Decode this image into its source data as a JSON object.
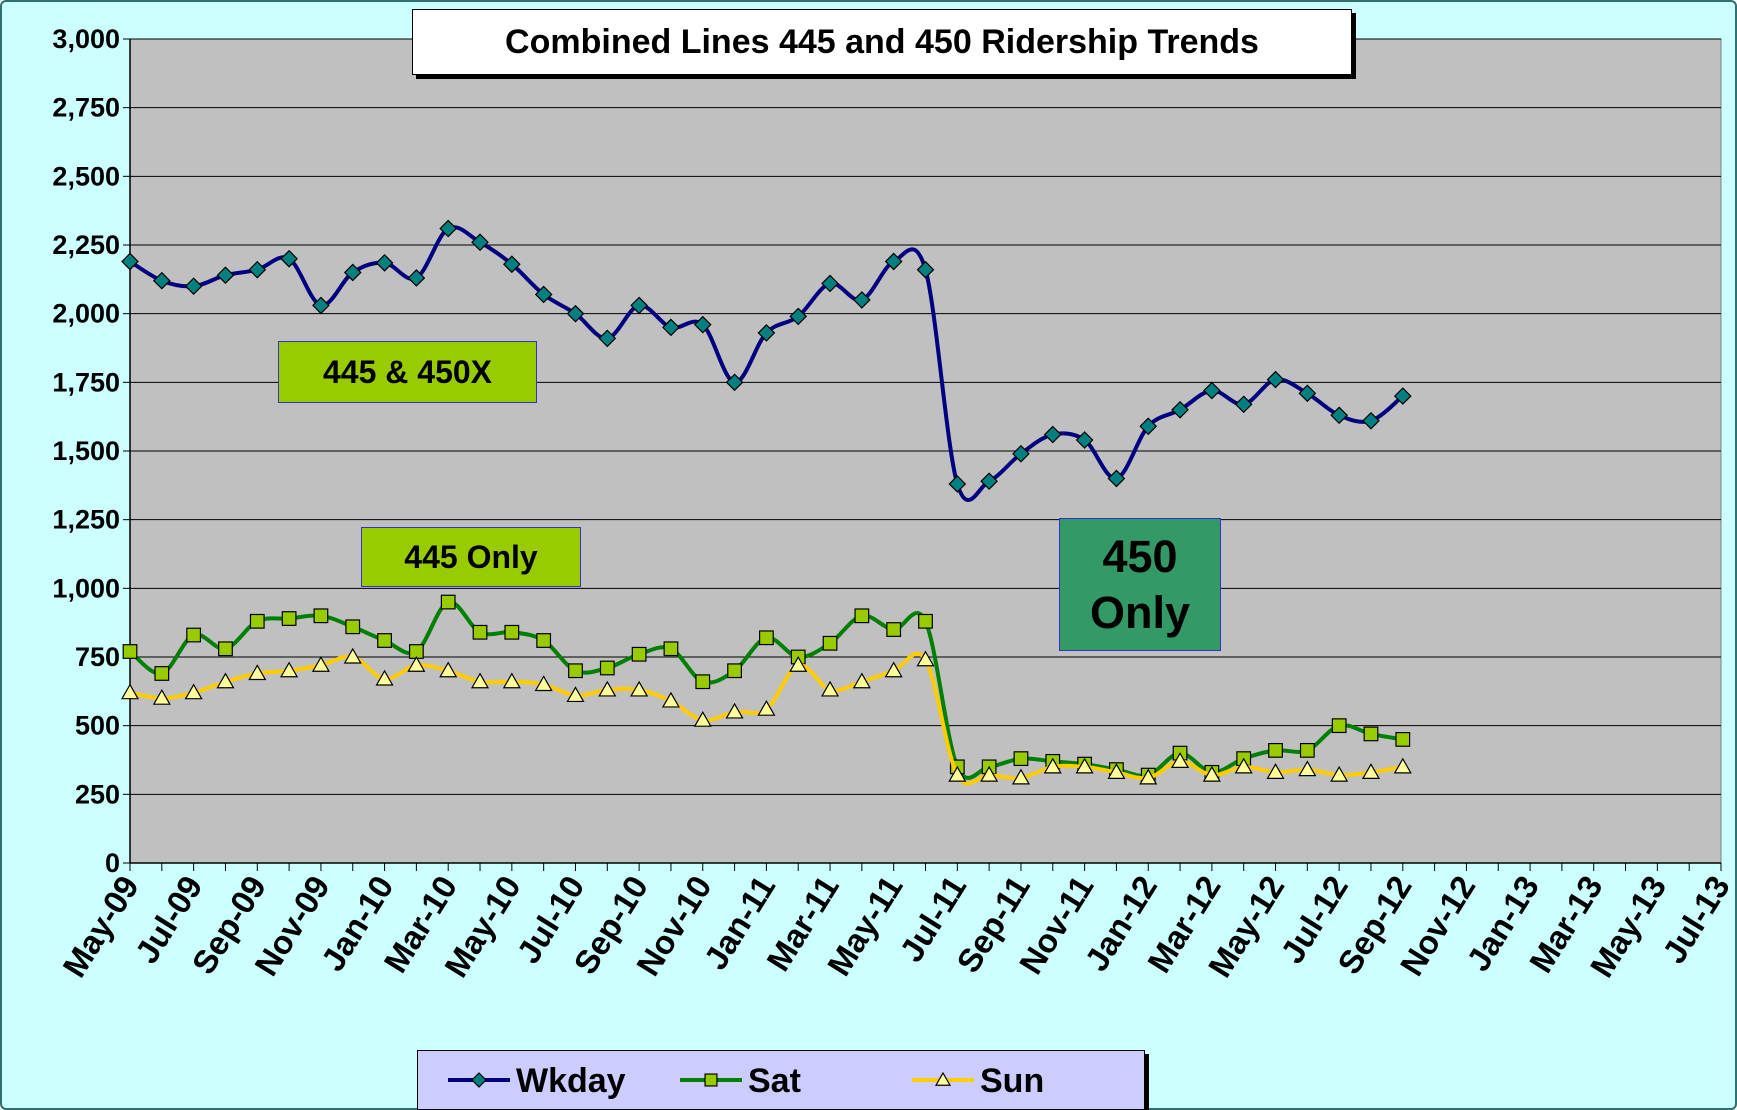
{
  "chart_data": {
    "type": "line",
    "title": "Combined Lines 445 and 450 Ridership Trends",
    "categories": [
      "May-09",
      null,
      "Jul-09",
      null,
      "Sep-09",
      null,
      "Nov-09",
      null,
      "Jan-10",
      null,
      "Mar-10",
      null,
      "May-10",
      null,
      "Jul-10",
      null,
      "Sep-10",
      null,
      "Nov-10",
      null,
      "Jan-11",
      null,
      "Mar-11",
      null,
      "May-11",
      null,
      "Jul-11",
      null,
      "Sep-11",
      null,
      "Nov-11",
      null,
      "Jan-12",
      null,
      "Mar-12",
      null,
      "May-12",
      null,
      "Jul-12",
      null,
      "Sep-12",
      null,
      "Nov-12",
      null,
      "Jan-13",
      null,
      "Mar-13",
      null,
      "May-13",
      null,
      "Jul-13"
    ],
    "series": [
      {
        "name": "Wkday",
        "color": "#000080",
        "marker": "diamond",
        "marker_color": "#008080",
        "values": [
          2190,
          2120,
          2100,
          2140,
          2160,
          2200,
          2030,
          2150,
          2185,
          2130,
          2310,
          2260,
          2180,
          2070,
          2000,
          1910,
          2030,
          1950,
          1960,
          1750,
          1930,
          1990,
          2110,
          2050,
          2190,
          2160,
          1380,
          1390,
          1490,
          1560,
          1540,
          1400,
          1590,
          1650,
          1720,
          1670,
          1760,
          1710,
          1630,
          1610,
          1700,
          null,
          null,
          null,
          null,
          null,
          null,
          null,
          null,
          null,
          null
        ]
      },
      {
        "name": "Sat",
        "color": "#008000",
        "marker": "square",
        "marker_color": "#99cc00",
        "values": [
          770,
          690,
          830,
          780,
          880,
          890,
          900,
          860,
          810,
          770,
          950,
          840,
          840,
          810,
          700,
          710,
          760,
          780,
          660,
          700,
          820,
          750,
          800,
          900,
          850,
          880,
          350,
          350,
          380,
          370,
          360,
          340,
          320,
          400,
          330,
          380,
          410,
          410,
          500,
          470,
          450,
          null,
          null,
          null,
          null,
          null,
          null,
          null,
          null,
          null,
          null
        ]
      },
      {
        "name": "Sun",
        "color": "#ffcc00",
        "marker": "triangle",
        "marker_color": "#ffff99",
        "values": [
          620,
          600,
          620,
          660,
          690,
          700,
          720,
          750,
          670,
          720,
          700,
          660,
          660,
          650,
          610,
          630,
          630,
          590,
          520,
          550,
          560,
          720,
          630,
          660,
          700,
          740,
          320,
          320,
          310,
          350,
          350,
          330,
          310,
          370,
          320,
          350,
          330,
          340,
          320,
          330,
          350,
          null,
          null,
          null,
          null,
          null,
          null,
          null,
          null,
          null,
          null
        ]
      }
    ],
    "ylim": [
      0,
      3000
    ],
    "yticks": [
      0,
      250,
      500,
      750,
      {
        "value": 1000,
        "label": "1,000"
      },
      {
        "value": 1250,
        "label": "1,250"
      },
      {
        "value": 1500,
        "label": "1,500"
      },
      {
        "value": 1750,
        "label": "1,750"
      },
      {
        "value": 2000,
        "label": "2,000"
      },
      {
        "value": 2250,
        "label": "2,250"
      },
      {
        "value": 2500,
        "label": "2,500"
      },
      {
        "value": 2750,
        "label": "2,750"
      },
      {
        "value": 3000,
        "label": "3,000"
      }
    ],
    "grid": true,
    "legend": "bottom",
    "annotations": [
      "445 & 450X",
      "445 Only",
      "450 Only"
    ]
  }
}
